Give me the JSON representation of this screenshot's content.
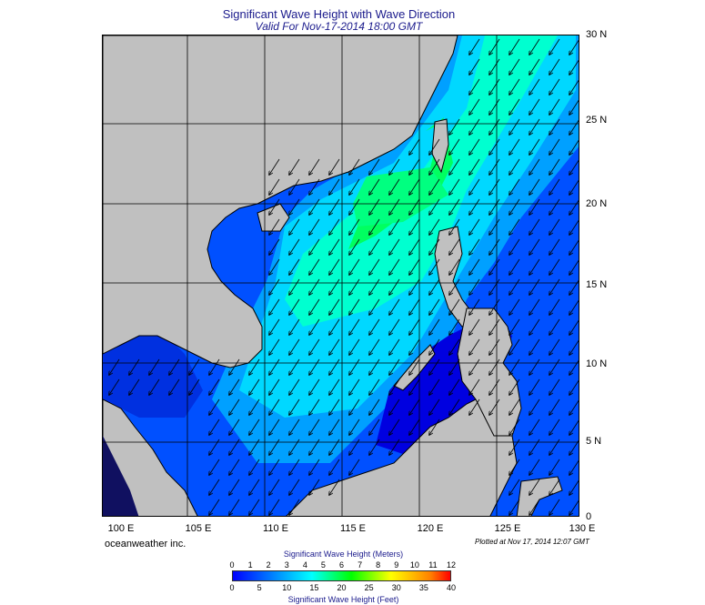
{
  "header": {
    "title": "Significant Wave Height with Wave Direction",
    "subtitle": "Valid For Nov-17-2014 18:00 GMT"
  },
  "map": {
    "lon_labels": [
      "100 E",
      "105 E",
      "110 E",
      "115 E",
      "120 E",
      "125 E",
      "130 E"
    ],
    "lat_labels": [
      "30 N",
      "25 N",
      "20 N",
      "15 N",
      "10 N",
      "5 N",
      "0"
    ],
    "lon_range": [
      99,
      130
    ],
    "lat_range": [
      0,
      30
    ],
    "land_color": "#c0c0c0",
    "grid": true,
    "arrow_direction": "towards southwest (NE monsoon)"
  },
  "footer": {
    "credit": "oceanweather inc.",
    "plotted": "Plotted at Nov 17, 2014 12:07 GMT"
  },
  "colorbar": {
    "title_meters": "Significant Wave Height (Meters)",
    "title_feet": "Significant Wave Height (Feet)",
    "meters_ticks": [
      "0",
      "1",
      "2",
      "3",
      "4",
      "5",
      "6",
      "7",
      "8",
      "9",
      "10",
      "11",
      "12"
    ],
    "feet_ticks": [
      "0",
      "5",
      "10",
      "15",
      "20",
      "25",
      "30",
      "35",
      "40"
    ],
    "colors": [
      "#0000ff",
      "#0040ff",
      "#0080ff",
      "#00c0ff",
      "#00ffff",
      "#00ff80",
      "#00ff00",
      "#80ff00",
      "#ffff00",
      "#ffc000",
      "#ff8000",
      "#ff0000"
    ]
  }
}
